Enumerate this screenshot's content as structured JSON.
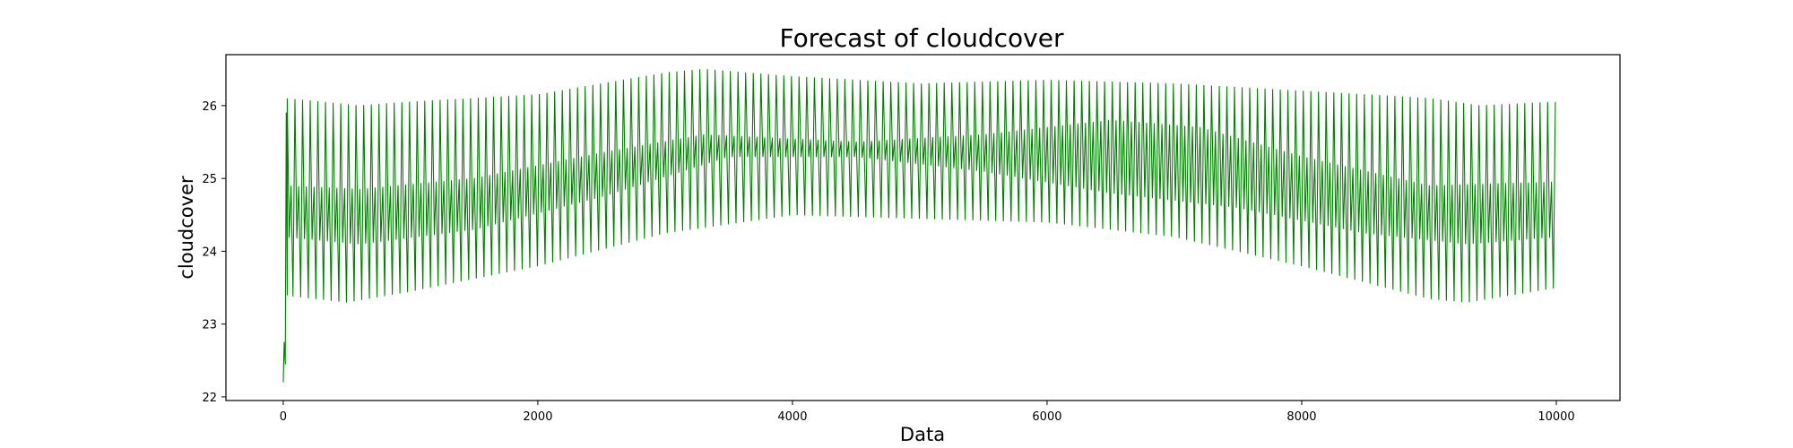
{
  "chart_data": {
    "type": "line",
    "title": "Forecast of cloudcover",
    "xlabel": "Data",
    "ylabel": "cloudcover",
    "xlim": [
      -450,
      10500
    ],
    "ylim": [
      21.95,
      26.7
    ],
    "xticks": [
      0,
      2000,
      4000,
      6000,
      8000,
      10000
    ],
    "yticks": [
      22,
      23,
      24,
      25,
      26
    ],
    "xtick_labels": [
      "0",
      "2000",
      "4000",
      "6000",
      "8000",
      "10000"
    ],
    "ytick_labels": [
      "22",
      "23",
      "24",
      "25",
      "26"
    ],
    "grid": false,
    "legend": "none",
    "series": [
      {
        "color": "#008000",
        "x_range": [
          0,
          10000
        ],
        "oscillation_period": 60,
        "startup_values": [
          {
            "x": 0,
            "y": 22.2
          },
          {
            "x": 8,
            "y": 22.75
          },
          {
            "x": 16,
            "y": 22.45
          },
          {
            "x": 24,
            "y": 25.9
          },
          {
            "x": 32,
            "y": 23.4
          }
        ],
        "upper_envelope": [
          {
            "x": 0,
            "y": 26.1
          },
          {
            "x": 600,
            "y": 26.0
          },
          {
            "x": 1000,
            "y": 26.05
          },
          {
            "x": 2000,
            "y": 26.15
          },
          {
            "x": 3000,
            "y": 26.45
          },
          {
            "x": 3300,
            "y": 26.5
          },
          {
            "x": 4000,
            "y": 26.4
          },
          {
            "x": 5000,
            "y": 26.3
          },
          {
            "x": 6000,
            "y": 26.35
          },
          {
            "x": 7000,
            "y": 26.3
          },
          {
            "x": 8000,
            "y": 26.2
          },
          {
            "x": 9000,
            "y": 26.1
          },
          {
            "x": 9400,
            "y": 26.0
          },
          {
            "x": 10000,
            "y": 26.05
          }
        ],
        "inner_upper_envelope": [
          {
            "x": 0,
            "y": 24.9
          },
          {
            "x": 600,
            "y": 24.85
          },
          {
            "x": 1500,
            "y": 25.0
          },
          {
            "x": 2500,
            "y": 25.35
          },
          {
            "x": 3300,
            "y": 25.6
          },
          {
            "x": 4500,
            "y": 25.5
          },
          {
            "x": 5500,
            "y": 25.6
          },
          {
            "x": 6500,
            "y": 25.8
          },
          {
            "x": 7200,
            "y": 25.7
          },
          {
            "x": 8000,
            "y": 25.3
          },
          {
            "x": 9000,
            "y": 24.9
          },
          {
            "x": 10000,
            "y": 24.95
          }
        ],
        "inner_lower_envelope": [
          {
            "x": 0,
            "y": 24.2
          },
          {
            "x": 600,
            "y": 24.1
          },
          {
            "x": 1500,
            "y": 24.3
          },
          {
            "x": 2500,
            "y": 24.75
          },
          {
            "x": 3500,
            "y": 25.3
          },
          {
            "x": 4500,
            "y": 25.3
          },
          {
            "x": 5500,
            "y": 25.1
          },
          {
            "x": 6500,
            "y": 24.8
          },
          {
            "x": 7500,
            "y": 24.6
          },
          {
            "x": 8500,
            "y": 24.25
          },
          {
            "x": 9300,
            "y": 24.1
          },
          {
            "x": 10000,
            "y": 24.2
          }
        ],
        "lower_envelope": [
          {
            "x": 0,
            "y": 23.4
          },
          {
            "x": 500,
            "y": 23.3
          },
          {
            "x": 1000,
            "y": 23.45
          },
          {
            "x": 2000,
            "y": 23.8
          },
          {
            "x": 3000,
            "y": 24.25
          },
          {
            "x": 4000,
            "y": 24.5
          },
          {
            "x": 5000,
            "y": 24.45
          },
          {
            "x": 6000,
            "y": 24.4
          },
          {
            "x": 7000,
            "y": 24.2
          },
          {
            "x": 8000,
            "y": 23.8
          },
          {
            "x": 9000,
            "y": 23.35
          },
          {
            "x": 9300,
            "y": 23.3
          },
          {
            "x": 10000,
            "y": 23.5
          }
        ]
      }
    ]
  }
}
